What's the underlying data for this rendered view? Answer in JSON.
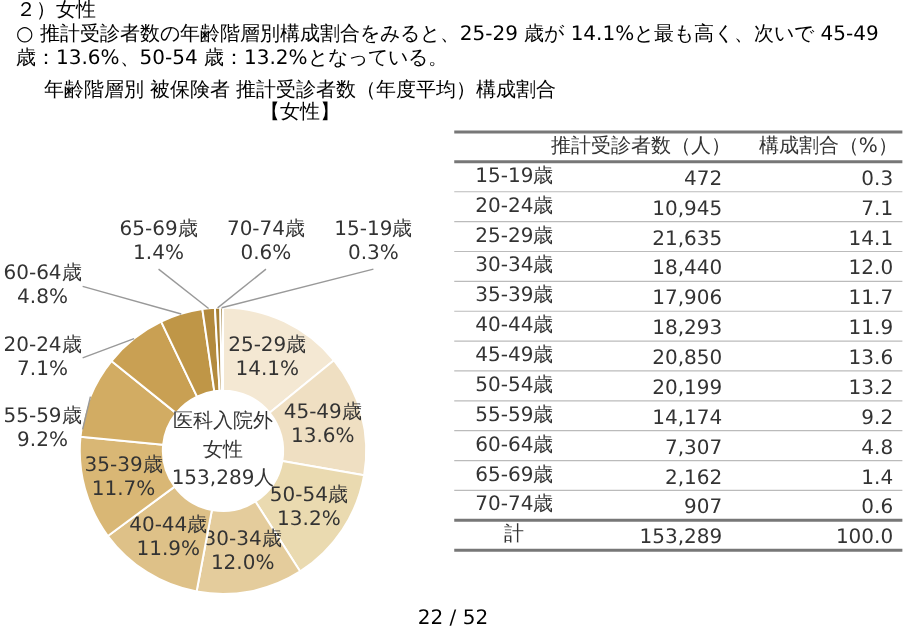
{
  "chart_data": [
    {
      "type": "donut",
      "title": "年齢階層別 被保険者 推計受診者数（年度平均）構成割合",
      "subtitle": "【女性】",
      "categories": [
        "25-29歳",
        "45-49歳",
        "50-54歳",
        "30-34歳",
        "40-44歳",
        "35-39歳",
        "55-59歳",
        "20-24歳",
        "60-64歳",
        "65-69歳",
        "70-74歳",
        "15-19歳"
      ],
      "values": [
        14.1,
        13.6,
        13.2,
        12.0,
        11.9,
        11.7,
        9.2,
        7.1,
        4.8,
        1.4,
        0.6,
        0.3
      ],
      "value_labels": [
        "14.1%",
        "13.6%",
        "13.2%",
        "12.0%",
        "11.9%",
        "11.7%",
        "9.2%",
        "7.1%",
        "4.8%",
        "1.4%",
        "0.6%",
        "0.3%"
      ],
      "colors": [
        "#f4e8d3",
        "#efdfc2",
        "#eadab0",
        "#e4cc9c",
        "#dec188",
        "#d9b775",
        "#d2ac63",
        "#c9a053",
        "#bf9647",
        "#b38a3d",
        "#a47e33",
        "#94722b"
      ],
      "annotations": [
        "２）女性",
        "○ 推計受診者数の年齢階層別構成割合をみると、25-29 歳が 14.1%と最も高く、次いで 45-49 歳：13.6%、50-54 歳：13.2%となっている。",
        "医科入院外",
        "女性",
        "153,289人",
        "22 / 52"
      ]
    },
    {
      "type": "other",
      "categories": [
        "15-19歳",
        "20-24歳",
        "25-29歳",
        "30-34歳",
        "35-39歳",
        "40-44歳",
        "45-49歳",
        "50-54歳",
        "55-59歳",
        "60-64歳",
        "65-69歳",
        "70-74歳",
        "計"
      ],
      "series": [
        {
          "name": "推計受診者数（人）",
          "values": [
            472,
            10945,
            21635,
            18440,
            17906,
            18293,
            20850,
            20199,
            14174,
            7307,
            2162,
            907,
            153289
          ],
          "value_labels": [
            "472",
            "10,945",
            "21,635",
            "18,440",
            "17,906",
            "18,293",
            "20,850",
            "20,199",
            "14,174",
            "7,307",
            "2,162",
            "907",
            "153,289"
          ]
        },
        {
          "name": "構成割合（%）",
          "values": [
            0.3,
            7.1,
            14.1,
            12.0,
            11.7,
            11.9,
            13.6,
            13.2,
            9.2,
            4.8,
            1.4,
            0.6,
            100.0
          ],
          "value_labels": [
            "0.3",
            "7.1",
            "14.1",
            "12.0",
            "11.7",
            "11.9",
            "13.6",
            "13.2",
            "9.2",
            "4.8",
            "1.4",
            "0.6",
            "100.0"
          ]
        }
      ]
    }
  ]
}
